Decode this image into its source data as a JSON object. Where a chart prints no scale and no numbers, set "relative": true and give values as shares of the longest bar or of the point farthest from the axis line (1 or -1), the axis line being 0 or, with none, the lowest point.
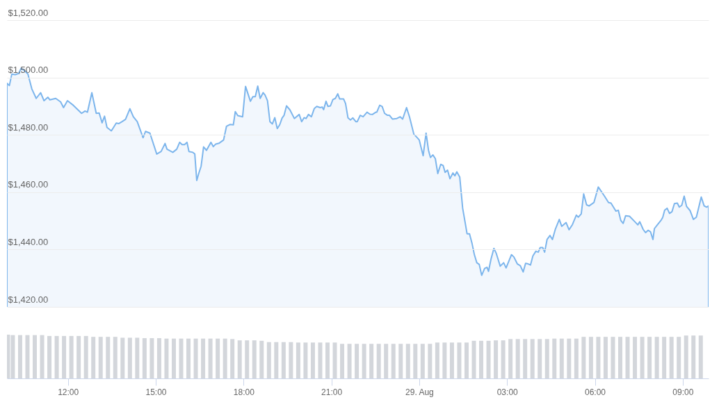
{
  "chart_data": [
    {
      "type": "area",
      "color": "#7cb5ec",
      "xlim": [
        "--08-28T09:55",
        "--08-29T09:53"
      ],
      "ylim": [
        1420,
        1520
      ],
      "grid": "y",
      "tick_labels": "y",
      "yticks": [
        {
          "value": 1420,
          "label": "$1,420.00"
        },
        {
          "value": 1440,
          "label": "$1,440.00"
        },
        {
          "value": 1460,
          "label": "$1,460.00"
        },
        {
          "value": 1480,
          "label": "$1,480.00"
        },
        {
          "value": 1500,
          "label": "$1,500.00"
        },
        {
          "value": 1520,
          "label": "$1,520.00"
        }
      ],
      "x": [
        "--08-28T09:55",
        "--08-28T10:00",
        "--08-28T10:05",
        "--08-28T10:12",
        "--08-28T10:19",
        "--08-28T10:24",
        "--08-28T10:31",
        "--08-28T10:38",
        "--08-28T10:46",
        "--08-28T10:55",
        "--08-28T11:04",
        "--08-28T11:11",
        "--08-28T11:19",
        "--08-28T11:23",
        "--08-28T11:35",
        "--08-28T11:45",
        "--08-28T11:51",
        "--08-28T11:59",
        "--08-28T12:11",
        "--08-28T12:28",
        "--08-28T12:35",
        "--08-28T12:40",
        "--08-28T12:49",
        "--08-28T12:58",
        "--08-28T13:04",
        "--08-28T13:10",
        "--08-28T13:15",
        "--08-28T13:20",
        "--08-28T13:29",
        "--08-28T13:39",
        "--08-28T13:44",
        "--08-28T13:51",
        "--08-28T13:58",
        "--08-28T14:07",
        "--08-28T14:14",
        "--08-28T14:22",
        "--08-28T14:34",
        "--08-28T14:39",
        "--08-28T14:48",
        "--08-28T15:02",
        "--08-28T15:11",
        "--08-28T15:19",
        "--08-28T15:23",
        "--08-28T15:35",
        "--08-28T15:43",
        "--08-28T15:49",
        "--08-28T15:54",
        "--08-28T15:59",
        "--08-28T16:04",
        "--08-28T16:08",
        "--08-28T16:16",
        "--08-28T16:20",
        "--08-28T16:24",
        "--08-28T16:28",
        "--08-28T16:33",
        "--08-28T16:38",
        "--08-28T16:44",
        "--08-28T16:53",
        "--08-28T16:58",
        "--08-28T17:03",
        "--08-28T17:10",
        "--08-28T17:19",
        "--08-28T17:25",
        "--08-28T17:32",
        "--08-28T17:39",
        "--08-28T17:43",
        "--08-28T17:48",
        "--08-28T17:58",
        "--08-28T18:04",
        "--08-28T18:14",
        "--08-28T18:19",
        "--08-28T18:24",
        "--08-28T18:29",
        "--08-28T18:34",
        "--08-28T18:40",
        "--08-28T18:44",
        "--08-28T18:49",
        "--08-28T18:54",
        "--08-28T18:59",
        "--08-28T19:04",
        "--08-28T19:09",
        "--08-28T19:14",
        "--08-28T19:19",
        "--08-28T19:23",
        "--08-28T19:28",
        "--08-28T19:35",
        "--08-28T19:44",
        "--08-28T19:54",
        "--08-28T19:59",
        "--08-28T20:04",
        "--08-28T20:08",
        "--08-28T20:13",
        "--08-28T20:19",
        "--08-28T20:25",
        "--08-28T20:30",
        "--08-28T20:37",
        "--08-28T20:41",
        "--08-28T20:44",
        "--08-28T20:49",
        "--08-28T20:53",
        "--08-28T20:58",
        "--08-28T21:03",
        "--08-28T21:08",
        "--08-28T21:13",
        "--08-28T21:17",
        "--08-28T21:25",
        "--08-28T21:29",
        "--08-28T21:34",
        "--08-28T21:39",
        "--08-28T21:44",
        "--08-28T21:50",
        "--08-28T21:53",
        "--08-28T21:59",
        "--08-28T22:05",
        "--08-28T22:13",
        "--08-28T22:19",
        "--08-28T22:24",
        "--08-28T22:31",
        "--08-28T22:33",
        "--08-28T22:39",
        "--08-28T22:44",
        "--08-28T22:49",
        "--08-28T22:55",
        "--08-28T22:59",
        "--08-28T23:05",
        "--08-28T23:14",
        "--08-28T23:21",
        "--08-28T23:26",
        "--08-28T23:34",
        "--08-28T23:40",
        "--08-28T23:49",
        "--08-28T23:56",
        "--08-29T00:00",
        "--08-29T00:08",
        "--08-29T00:14",
        "--08-29T00:19",
        "--08-29T00:23",
        "--08-29T00:28",
        "--08-29T00:33",
        "--08-29T00:38",
        "--08-29T00:44",
        "--08-29T00:49",
        "--08-29T00:53",
        "--08-29T00:58",
        "--08-29T01:03",
        "--08-29T01:09",
        "--08-29T01:13",
        "--08-29T01:17",
        "--08-29T01:23",
        "--08-29T01:29",
        "--08-29T01:34",
        "--08-29T01:38",
        "--08-29T01:43",
        "--08-29T01:48",
        "--08-29T01:53",
        "--08-29T01:58",
        "--08-29T02:03",
        "--08-29T02:08",
        "--08-29T02:14",
        "--08-29T02:19",
        "--08-29T02:22",
        "--08-29T02:27",
        "--08-29T02:33",
        "--08-29T02:38",
        "--08-29T02:46",
        "--08-29T02:53",
        "--08-29T02:58",
        "--08-29T03:09",
        "--08-29T03:14",
        "--08-29T03:21",
        "--08-29T03:27",
        "--08-29T03:33",
        "--08-29T03:38",
        "--08-29T03:43",
        "--08-29T03:48",
        "--08-29T03:53",
        "--08-29T03:59",
        "--08-29T04:04",
        "--08-29T04:08",
        "--08-29T04:13",
        "--08-29T04:17",
        "--08-29T04:22",
        "--08-29T04:28",
        "--08-29T04:33",
        "--08-29T04:39",
        "--08-29T04:47",
        "--08-29T04:52",
        "--08-29T05:01",
        "--08-29T05:07",
        "--08-29T05:14",
        "--08-29T05:22",
        "--08-29T05:26",
        "--08-29T05:32",
        "--08-29T05:37",
        "--08-29T05:43",
        "--08-29T05:48",
        "--08-29T05:58",
        "--08-29T06:07",
        "--08-29T06:19",
        "--08-29T06:28",
        "--08-29T06:33",
        "--08-29T06:43",
        "--08-29T06:48",
        "--08-29T06:53",
        "--08-29T06:58",
        "--08-29T07:03",
        "--08-29T07:11",
        "--08-29T07:23",
        "--08-29T07:28",
        "--08-29T07:32",
        "--08-29T07:39",
        "--08-29T07:44",
        "--08-29T07:49",
        "--08-29T07:54",
        "--08-29T07:59",
        "--08-29T08:02",
        "--08-29T08:08",
        "--08-29T08:16",
        "--08-29T08:19",
        "--08-29T08:23",
        "--08-29T08:28",
        "--08-29T08:33",
        "--08-29T08:38",
        "--08-29T08:43",
        "--08-29T08:49",
        "--08-29T08:53",
        "--08-29T08:58",
        "--08-29T09:03",
        "--08-29T09:08",
        "--08-29T09:15",
        "--08-29T09:22",
        "--08-29T09:28",
        "--08-29T09:38",
        "--08-29T09:44",
        "--08-29T09:49",
        "--08-29T09:53"
      ],
      "values": [
        1498.0,
        1497.2,
        1501.2,
        1501.0,
        1501.4,
        1503.2,
        1502.4,
        1501.2,
        1496.0,
        1492.7,
        1494.7,
        1491.9,
        1493.1,
        1492.2,
        1492.7,
        1491.5,
        1489.5,
        1491.9,
        1490.3,
        1487.5,
        1488.3,
        1487.9,
        1494.7,
        1487.5,
        1487.6,
        1484.2,
        1486.5,
        1482.6,
        1481.4,
        1484.1,
        1483.9,
        1484.6,
        1485.4,
        1489.1,
        1486.3,
        1484.6,
        1479.0,
        1481.2,
        1480.6,
        1473.3,
        1474.2,
        1477.0,
        1475.0,
        1473.9,
        1475.0,
        1477.4,
        1476.6,
        1476.6,
        1477.4,
        1474.2,
        1473.9,
        1473.3,
        1464.1,
        1466.5,
        1469.1,
        1475.8,
        1474.6,
        1477.4,
        1475.9,
        1476.8,
        1477.1,
        1478.2,
        1483.0,
        1483.6,
        1483.5,
        1488.1,
        1486.7,
        1486.3,
        1496.9,
        1491.7,
        1493.3,
        1493.3,
        1497.0,
        1492.7,
        1494.7,
        1493.9,
        1491.9,
        1484.6,
        1483.8,
        1486.0,
        1482.2,
        1483.5,
        1485.9,
        1486.8,
        1490.1,
        1488.7,
        1485.7,
        1487.1,
        1484.6,
        1486.0,
        1485.7,
        1487.1,
        1486.3,
        1489.2,
        1489.9,
        1489.5,
        1489.7,
        1488.8,
        1491.7,
        1489.9,
        1490.1,
        1492.3,
        1492.7,
        1494.3,
        1492.5,
        1492.5,
        1490.9,
        1485.9,
        1485.2,
        1485.9,
        1484.6,
        1484.6,
        1486.8,
        1486.3,
        1487.9,
        1487.2,
        1487.1,
        1487.9,
        1487.9,
        1490.3,
        1489.9,
        1487.5,
        1486.8,
        1486.8,
        1485.5,
        1485.7,
        1486.3,
        1485.5,
        1489.5,
        1486.3,
        1480.2,
        1479.0,
        1478.2,
        1472.7,
        1480.6,
        1474.6,
        1472.1,
        1473.0,
        1471.7,
        1466.5,
        1469.7,
        1469.3,
        1466.9,
        1467.7,
        1464.7,
        1466.7,
        1465.7,
        1467.1,
        1465.3,
        1454.4,
        1449.5,
        1445.5,
        1445.5,
        1442.3,
        1438.2,
        1435.4,
        1434.8,
        1431.0,
        1433.4,
        1433.8,
        1432.4,
        1436.6,
        1440.4,
        1438.6,
        1434.2,
        1435.4,
        1433.6,
        1438.2,
        1437.4,
        1435.0,
        1434.4,
        1432.2,
        1435.2,
        1435.0,
        1434.6,
        1437.8,
        1439.4,
        1439.1,
        1440.7,
        1440.7,
        1439.1,
        1443.5,
        1444.9,
        1443.5,
        1447.1,
        1450.5,
        1448.1,
        1449.4,
        1446.9,
        1448.7,
        1452.0,
        1451.3,
        1452.4,
        1459.4,
        1455.6,
        1455.2,
        1456.4,
        1461.8,
        1458.8,
        1456.4,
        1456.2,
        1453.4,
        1453.7,
        1450.2,
        1449.1,
        1451.8,
        1451.6,
        1449.5,
        1448.6,
        1449.7,
        1447.0,
        1445.9,
        1446.7,
        1446.2,
        1443.5,
        1447.3,
        1448.6,
        1450.3,
        1451.2,
        1453.7,
        1454.4,
        1452.6,
        1453.2,
        1456.0,
        1456.2,
        1454.8,
        1455.4,
        1458.6,
        1455.0,
        1453.6,
        1450.5,
        1451.3,
        1458.3,
        1455.2,
        1454.8,
        1455.2
      ]
    },
    {
      "type": "bar",
      "color": "#d3d6db",
      "relative": true,
      "xlim": [
        "--08-28T09:55",
        "--08-29T09:53"
      ],
      "xticks": [
        {
          "value": "--08-28T12:00",
          "label": "12:00"
        },
        {
          "value": "--08-28T15:00",
          "label": "15:00"
        },
        {
          "value": "--08-28T18:00",
          "label": "18:00"
        },
        {
          "value": "--08-28T21:00",
          "label": "21:00"
        },
        {
          "value": "--08-29T00:00",
          "label": "29. Aug"
        },
        {
          "value": "--08-29T03:00",
          "label": "03:00"
        },
        {
          "value": "--08-29T06:00",
          "label": "06:00"
        },
        {
          "value": "--08-29T09:00",
          "label": "09:00"
        }
      ],
      "x": [
        "--08-28T09:57",
        "--08-28T10:07",
        "--08-28T10:22",
        "--08-28T10:37",
        "--08-28T10:52",
        "--08-28T11:07",
        "--08-28T11:22",
        "--08-28T11:37",
        "--08-28T11:52",
        "--08-28T12:07",
        "--08-28T12:22",
        "--08-28T12:37",
        "--08-28T12:52",
        "--08-28T13:07",
        "--08-28T13:22",
        "--08-28T13:37",
        "--08-28T13:52",
        "--08-28T14:07",
        "--08-28T14:22",
        "--08-28T14:37",
        "--08-28T14:52",
        "--08-28T15:07",
        "--08-28T15:22",
        "--08-28T15:37",
        "--08-28T15:52",
        "--08-28T16:07",
        "--08-28T16:22",
        "--08-28T16:37",
        "--08-28T16:52",
        "--08-28T17:07",
        "--08-28T17:22",
        "--08-28T17:37",
        "--08-28T17:52",
        "--08-28T18:07",
        "--08-28T18:22",
        "--08-28T18:37",
        "--08-28T18:52",
        "--08-28T19:07",
        "--08-28T19:22",
        "--08-28T19:37",
        "--08-28T19:52",
        "--08-28T20:07",
        "--08-28T20:22",
        "--08-28T20:37",
        "--08-28T20:52",
        "--08-28T21:07",
        "--08-28T21:22",
        "--08-28T21:37",
        "--08-28T21:52",
        "--08-28T22:07",
        "--08-28T22:22",
        "--08-28T22:37",
        "--08-28T22:52",
        "--08-28T23:07",
        "--08-28T23:22",
        "--08-28T23:37",
        "--08-28T23:52",
        "--08-29T00:07",
        "--08-29T00:22",
        "--08-29T00:37",
        "--08-29T00:52",
        "--08-29T01:07",
        "--08-29T01:22",
        "--08-29T01:37",
        "--08-29T01:52",
        "--08-29T02:07",
        "--08-29T02:22",
        "--08-29T02:37",
        "--08-29T02:52",
        "--08-29T03:07",
        "--08-29T03:22",
        "--08-29T03:37",
        "--08-29T03:52",
        "--08-29T04:07",
        "--08-29T04:22",
        "--08-29T04:37",
        "--08-29T04:52",
        "--08-29T05:07",
        "--08-29T05:22",
        "--08-29T05:37",
        "--08-29T05:52",
        "--08-29T06:07",
        "--08-29T06:22",
        "--08-29T06:37",
        "--08-29T06:52",
        "--08-29T07:07",
        "--08-29T07:22",
        "--08-29T07:37",
        "--08-29T07:52",
        "--08-29T08:07",
        "--08-29T08:22",
        "--08-29T08:37",
        "--08-29T08:52",
        "--08-29T09:07",
        "--08-29T09:22",
        "--08-29T09:37"
      ],
      "values": [
        1.0,
        0.99,
        0.99,
        0.99,
        0.99,
        0.99,
        0.97,
        0.97,
        0.97,
        0.97,
        0.97,
        0.97,
        0.95,
        0.95,
        0.95,
        0.95,
        0.93,
        0.93,
        0.93,
        0.92,
        0.92,
        0.92,
        0.91,
        0.91,
        0.91,
        0.91,
        0.91,
        0.91,
        0.91,
        0.91,
        0.91,
        0.9,
        0.87,
        0.87,
        0.87,
        0.86,
        0.83,
        0.83,
        0.83,
        0.83,
        0.82,
        0.82,
        0.82,
        0.82,
        0.82,
        0.82,
        0.79,
        0.79,
        0.79,
        0.79,
        0.79,
        0.79,
        0.79,
        0.79,
        0.79,
        0.79,
        0.79,
        0.79,
        0.79,
        0.82,
        0.82,
        0.82,
        0.82,
        0.82,
        0.86,
        0.86,
        0.86,
        0.87,
        0.87,
        0.9,
        0.9,
        0.9,
        0.9,
        0.9,
        0.9,
        0.91,
        0.91,
        0.91,
        0.91,
        0.95,
        0.95,
        0.95,
        0.95,
        0.95,
        0.95,
        0.95,
        0.95,
        0.95,
        0.95,
        0.95,
        0.95,
        0.95,
        0.95,
        0.98,
        0.98,
        0.98
      ]
    }
  ]
}
